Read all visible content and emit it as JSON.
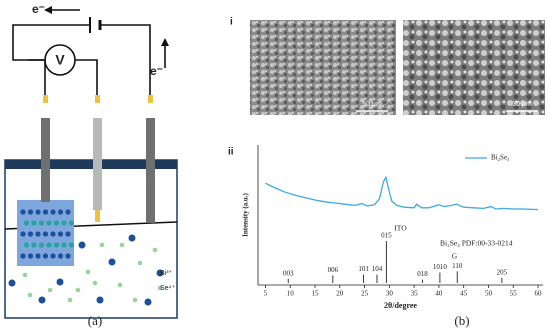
{
  "panel_a": {
    "electron_top": "e⁻",
    "electron_side": "e⁻",
    "voltmeter": "V",
    "ion_bi": "Bi³⁺",
    "ion_se": "Se⁴⁺",
    "caption": "(a)"
  },
  "panel_b": {
    "label_i": "i",
    "label_ii": "ii",
    "scale_bar_1": "50 μm",
    "scale_bar_2": "30 μm",
    "caption": "(b)"
  },
  "chart_data": {
    "type": "xrd",
    "x_label": "2θ/degree",
    "y_label": "Intensity (a.u.)",
    "xlim": [
      3.5,
      61
    ],
    "xticks": [
      5,
      10,
      15,
      20,
      25,
      30,
      35,
      40,
      45,
      50,
      55,
      60
    ],
    "ylim": [
      0,
      100
    ],
    "series": [
      {
        "name": "Bi₂Se₃",
        "color": "#3fa9e0",
        "x": [
          5,
          7,
          9,
          11,
          13,
          15,
          17,
          19,
          21,
          23,
          24.5,
          25.5,
          27,
          28,
          28.8,
          29.3,
          29.8,
          30.5,
          31.5,
          33,
          35,
          35.5,
          36.5,
          38,
          40,
          41,
          42.5,
          43.5,
          45,
          47,
          49,
          50.5,
          51.5,
          53,
          55,
          57,
          60
        ],
        "values": [
          78,
          70,
          63,
          58,
          54,
          50,
          47,
          45,
          43,
          41,
          44,
          40,
          42,
          52,
          80,
          88,
          70,
          48,
          41,
          38,
          37,
          43,
          37,
          37,
          42,
          39,
          41,
          43,
          38,
          37,
          36,
          39,
          35,
          36,
          35,
          35,
          34
        ]
      }
    ],
    "reference": {
      "label": "Bi₂Se₃ PDF:00-33-0214",
      "color": "#222222",
      "x": [
        9.6,
        18.6,
        24.8,
        27.5,
        29.4,
        36.7,
        40.2,
        43.7,
        52.7
      ],
      "values": [
        10,
        18,
        20,
        20,
        100,
        8,
        25,
        28,
        12
      ],
      "hkl": [
        "003",
        "006",
        "101",
        "104",
        "015",
        "018",
        "1010",
        "110",
        "205"
      ]
    },
    "annotations": {
      "ito": "ITO",
      "g": "G"
    }
  }
}
